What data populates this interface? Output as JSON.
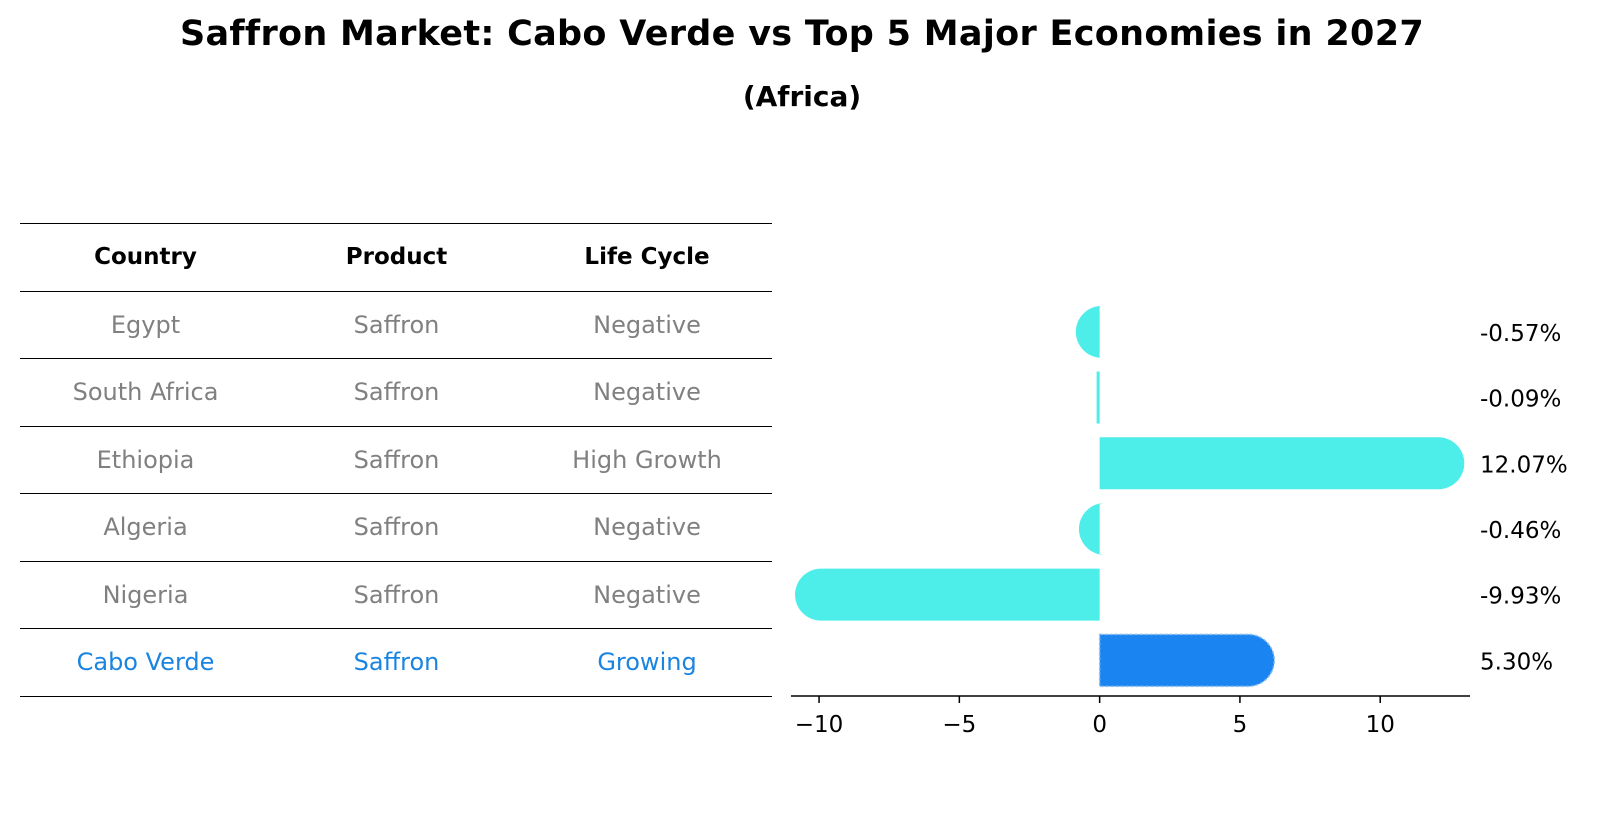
{
  "title": "Saffron Market: Cabo Verde vs Top 5 Major Economies in 2027",
  "subtitle": "(Africa)",
  "table": {
    "headers": [
      "Country",
      "Product",
      "Life Cycle"
    ],
    "rows": [
      [
        "Egypt",
        "Saffron",
        "Negative"
      ],
      [
        "South Africa",
        "Saffron",
        "Negative"
      ],
      [
        "Ethiopia",
        "Saffron",
        "High Growth"
      ],
      [
        "Algeria",
        "Saffron",
        "Negative"
      ],
      [
        "Nigeria",
        "Saffron",
        "Negative"
      ],
      [
        "Cabo Verde",
        "Saffron",
        "Growing"
      ]
    ]
  },
  "colors": {
    "bar": "#4DEEEA",
    "highlight": "#1A84F0",
    "highlight_text": "#1A84E0",
    "muted_text": "#808080"
  },
  "chart_data": {
    "type": "bar",
    "orientation": "horizontal",
    "categories": [
      "Egypt",
      "South Africa",
      "Ethiopia",
      "Algeria",
      "Nigeria",
      "Cabo Verde"
    ],
    "values": [
      -0.57,
      -0.09,
      12.07,
      -0.46,
      -9.93,
      5.3
    ],
    "labels": [
      "-0.57%",
      "-0.09%",
      "12.07%",
      "-0.46%",
      "-9.93%",
      "5.30%"
    ],
    "highlight": "Cabo Verde",
    "xlim": [
      -11,
      13.2
    ],
    "xticks": [
      -10,
      -5,
      0,
      5,
      10
    ],
    "xtick_labels": [
      "−10",
      "−5",
      "0",
      "5",
      "10"
    ],
    "xlabel": "",
    "ylabel": ""
  }
}
